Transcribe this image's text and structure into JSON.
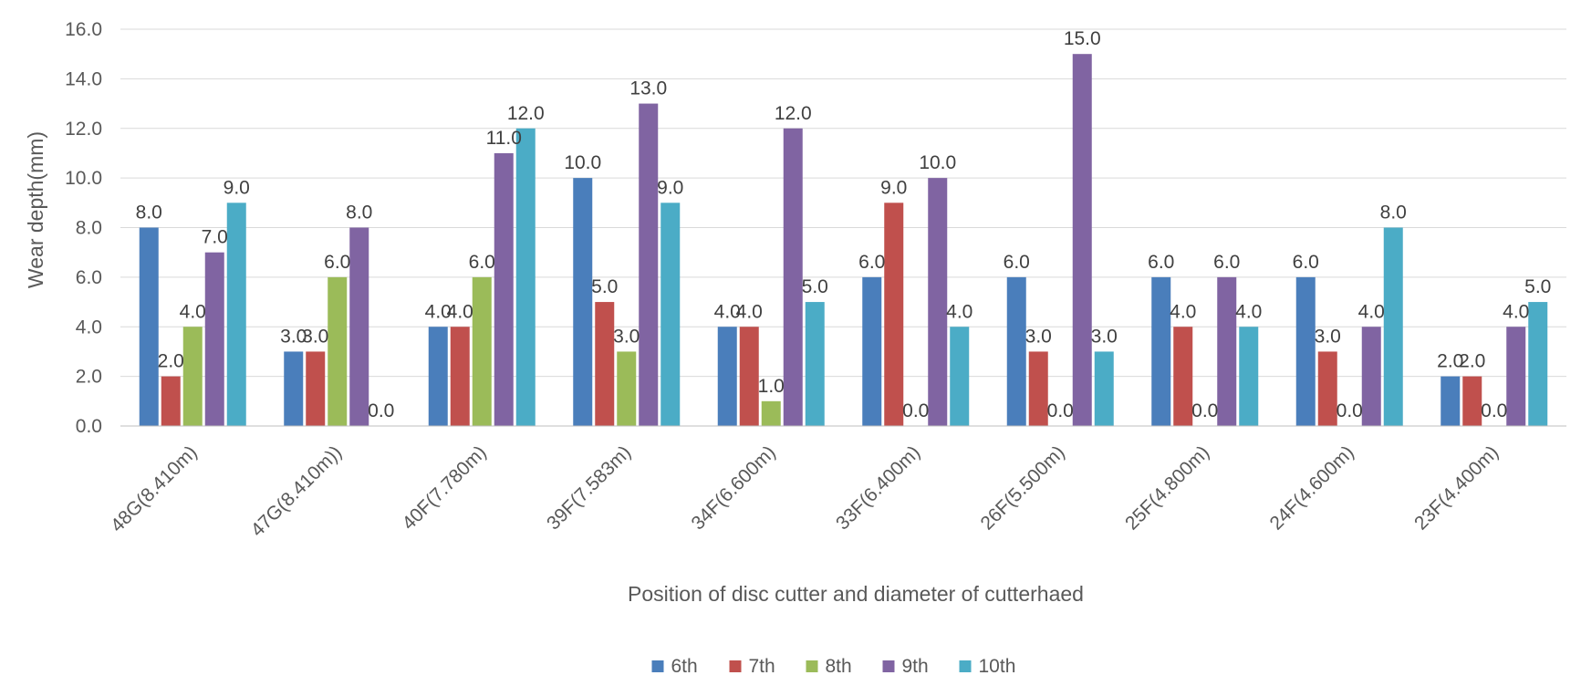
{
  "chart_data": {
    "type": "bar",
    "title": "",
    "xlabel": "Position of disc cutter and diameter of cutterhaed",
    "ylabel": "Wear depth(mm)",
    "ylim": [
      0,
      16
    ],
    "ytick_step": 2,
    "ytick_labels": [
      "0.0",
      "2.0",
      "4.0",
      "6.0",
      "8.0",
      "10.0",
      "12.0",
      "14.0",
      "16.0"
    ],
    "grid": true,
    "legend_position": "bottom",
    "categories": [
      "48G(8.410m)",
      "47G(8.410m))",
      "40F(7.780m)",
      "39F(7.583m)",
      "34F(6.600m)",
      "33F(6.400m)",
      "26F(5.500m)",
      "25F(4.800m)",
      "24F(4.600m)",
      "23F(4.400m)"
    ],
    "series": [
      {
        "name": "6th",
        "color": "#4a7ebb",
        "values": [
          8,
          3,
          4,
          10,
          4,
          6,
          6,
          6,
          6,
          2
        ],
        "labels": [
          "8.0",
          "3.0",
          "4.0",
          "10.0",
          "4.0",
          "6.0",
          "6.0",
          "6.0",
          "6.0",
          "2.0"
        ]
      },
      {
        "name": "7th",
        "color": "#c0504d",
        "values": [
          2,
          3,
          4,
          5,
          4,
          9,
          3,
          4,
          3,
          2
        ],
        "labels": [
          "2.0",
          "3.0",
          "4.0",
          "5.0",
          "4.0",
          "9.0",
          "3.0",
          "4.0",
          "3.0",
          "2.0"
        ]
      },
      {
        "name": "8th",
        "color": "#9bbb59",
        "values": [
          4,
          6,
          6,
          3,
          1,
          0,
          0,
          0,
          0,
          0
        ],
        "labels": [
          "4.0",
          "6.0",
          "6.0",
          "3.0",
          "1.0",
          "0.0",
          "0.0",
          "0.0",
          "0.0",
          "0.0"
        ]
      },
      {
        "name": "9th",
        "color": "#8064a2",
        "values": [
          7,
          8,
          11,
          13,
          12,
          10,
          15,
          6,
          4,
          4
        ],
        "labels": [
          "7.0",
          "8.0",
          "11.0",
          "13.0",
          "12.0",
          "10.0",
          "15.0",
          "6.0",
          "4.0",
          "4.0"
        ]
      },
      {
        "name": "10th",
        "color": "#4bacc6",
        "values": [
          9,
          0,
          12,
          9,
          5,
          4,
          3,
          4,
          8,
          5
        ],
        "labels": [
          "9.0",
          "0.0",
          "12.0",
          "9.0",
          "5.0",
          "4.0",
          "3.0",
          "4.0",
          "8.0",
          "5.0"
        ]
      }
    ]
  }
}
